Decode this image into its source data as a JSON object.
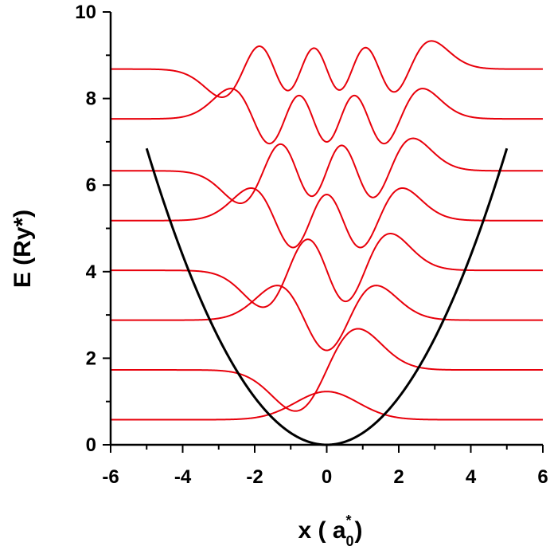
{
  "chart_data": {
    "type": "line",
    "xlabel": "x ( a",
    "xlabel_sub": "0",
    "xlabel_sup": "*",
    "xlabel_end": ")",
    "ylabel": "E (Ry*)",
    "xlim": [
      -6,
      6
    ],
    "ylim": [
      0,
      10
    ],
    "x_ticks": [
      -6,
      -4,
      -2,
      0,
      2,
      4,
      6
    ],
    "y_ticks": [
      0,
      2,
      4,
      6,
      8,
      10
    ],
    "x_tick_labels": [
      "-6",
      "-4",
      "-2",
      "0",
      "2",
      "4",
      "6"
    ],
    "y_tick_labels": [
      "0",
      "2",
      "4",
      "6",
      "8",
      "10"
    ],
    "grid": false,
    "colors": {
      "potential": "#000000",
      "wavefunction": "#e8000b"
    },
    "potential": {
      "form": "parabola",
      "coefficient": 0.2739,
      "x_range": [
        -5.0,
        5.0
      ]
    },
    "levels": [
      {
        "n": 0,
        "energy": 0.58,
        "amplitude": 0.65
      },
      {
        "n": 1,
        "energy": 1.73,
        "amplitude": 0.95
      },
      {
        "n": 2,
        "energy": 2.88,
        "amplitude": 0.8
      },
      {
        "n": 3,
        "energy": 4.03,
        "amplitude": 0.85
      },
      {
        "n": 4,
        "energy": 5.18,
        "amplitude": 0.75
      },
      {
        "n": 5,
        "energy": 6.33,
        "amplitude": 0.75
      },
      {
        "n": 6,
        "energy": 7.53,
        "amplitude": 0.7
      },
      {
        "n": 7,
        "energy": 8.68,
        "amplitude": 0.65
      }
    ]
  }
}
